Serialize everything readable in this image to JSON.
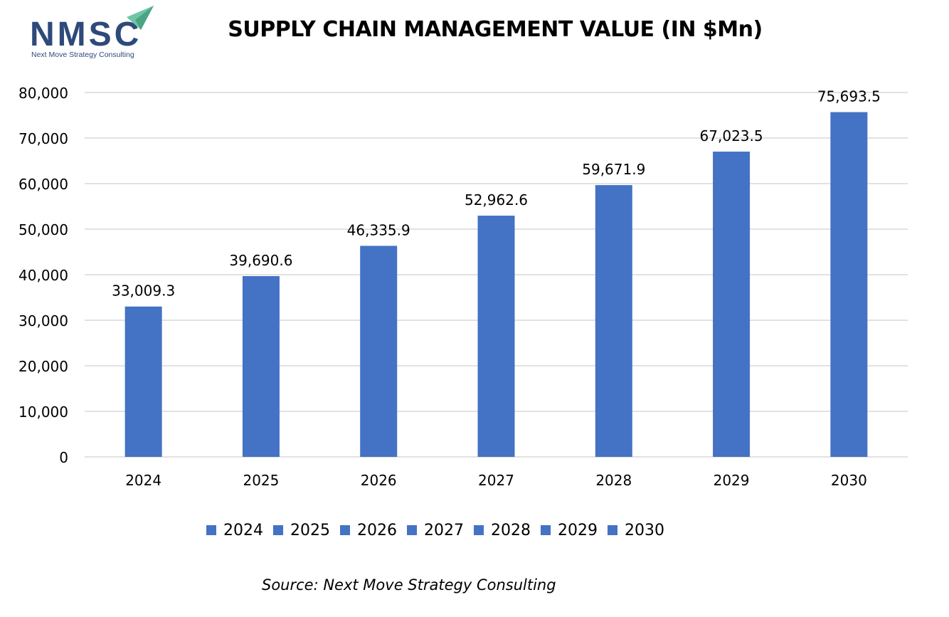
{
  "logo": {
    "text": "NMSC",
    "tagline": "Next Move Strategy Consulting",
    "icon": "paper-plane-icon",
    "colors": {
      "text": "#2e4a7a",
      "accent": "#6ec6a4"
    }
  },
  "source_note": "Source: Next Move Strategy Consulting",
  "chart_data": {
    "type": "bar",
    "title": "SUPPLY CHAIN MANAGEMENT VALUE (IN $Mn)",
    "xlabel": "",
    "ylabel": "",
    "categories": [
      "2024",
      "2025",
      "2026",
      "2027",
      "2028",
      "2029",
      "2030"
    ],
    "values": [
      33009.3,
      39690.6,
      46335.9,
      52962.6,
      59671.9,
      67023.5,
      75693.5
    ],
    "data_labels": [
      "33,009.3",
      "39,690.6",
      "46,335.9",
      "52,962.6",
      "59,671.9",
      "67,023.5",
      "75,693.5"
    ],
    "ylim": [
      0,
      80000
    ],
    "yticks": [
      0,
      10000,
      20000,
      30000,
      40000,
      50000,
      60000,
      70000,
      80000
    ],
    "ytick_labels": [
      "0",
      "10,000",
      "20,000",
      "30,000",
      "40,000",
      "50,000",
      "60,000",
      "70,000",
      "80,000"
    ],
    "grid": true,
    "legend": {
      "position": "bottom",
      "entries": [
        "2024",
        "2025",
        "2026",
        "2027",
        "2028",
        "2029",
        "2030"
      ]
    },
    "colors": {
      "bar": "#4472c4",
      "grid": "#d9d9d9",
      "axis": "#d9d9d9",
      "text": "#000000"
    }
  }
}
